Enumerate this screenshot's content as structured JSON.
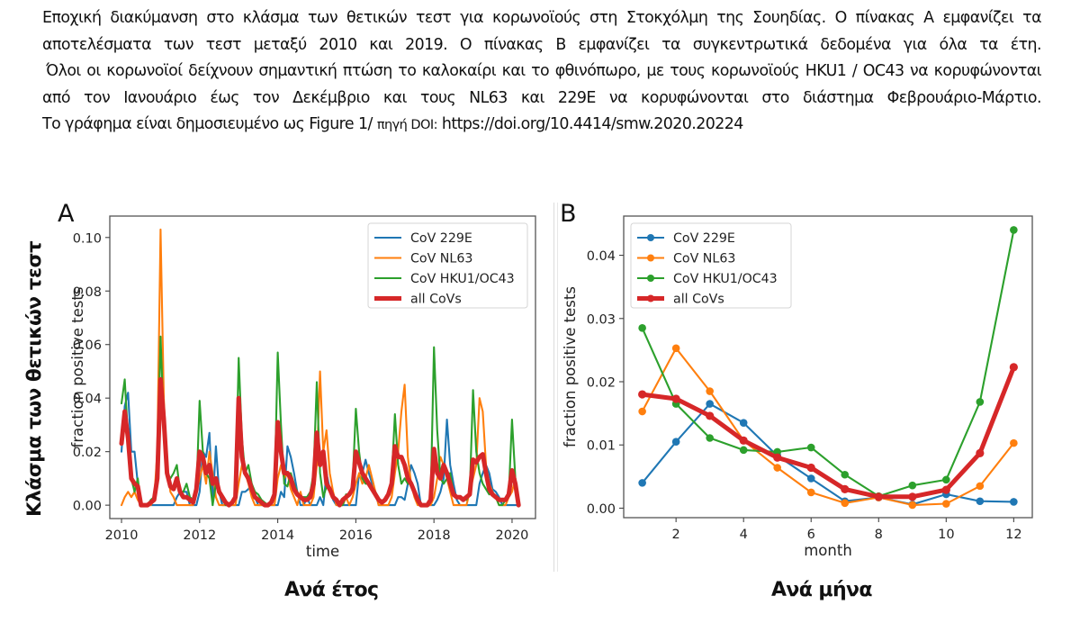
{
  "caption": {
    "paragraph1": "Εποχική διακύμανση στο κλάσμα των θετικών τεστ για κορωνοϊούς στη Στοκχόλμη της Σουηδίας. Ο πίνακας Α εμφανίζει τα αποτελέσματα των τεστ μεταξύ 2010 και 2019. Ο πίνακας Β εμφανίζει τα συγκεντρωτικά δεδομένα για όλα τα έτη.",
    "paragraph2": "Όλοι οι κορωνοϊοί δείχνουν σημαντική πτώση το καλοκαίρι και το φθινόπωρο, με τους κορωνοϊούς HKU1 / OC43 να κορυφώνονται από τον Ιανουάριο έως τον Δεκέμβριο και τους NL63 και 229E να κορυφώνονται στο διάστημα Φεβρουάριο-Μάρτιο.",
    "source_prefix": "Το γράφημα είναι δημοσιευμένο ως Figure 1/",
    "source_label": "πηγή DOI:",
    "source_url": "https://doi.org/10.4414/smw.2020.20224"
  },
  "y_axis_greek_label": "Κλάσμα των θετικών τεστ",
  "bottom_labels": {
    "panel_a": "Ανά έτος",
    "panel_b": "Ανά μήνα"
  },
  "colors": {
    "cov_229e": "#1f77b4",
    "cov_nl63": "#ff7f0e",
    "cov_hku1_oc43": "#2ca02c",
    "all_covs": "#d62728"
  },
  "chart_data": [
    {
      "panel": "A",
      "type": "line",
      "title": "",
      "xlabel": "time",
      "ylabel": "fraction positive tests",
      "xlim": [
        2009.7,
        2020.6
      ],
      "ylim": [
        -0.005,
        0.108
      ],
      "xticks": [
        2010,
        2012,
        2014,
        2016,
        2018,
        2020
      ],
      "xtick_labels": [
        "2010",
        "2012",
        "2014",
        "2016",
        "2018",
        "2020"
      ],
      "yticks": [
        0.0,
        0.02,
        0.04,
        0.06,
        0.08,
        0.1
      ],
      "ytick_labels": [
        "0.00",
        "0.02",
        "0.04",
        "0.06",
        "0.08",
        "0.10"
      ],
      "grid": false,
      "legend_position": "top-right",
      "x_start": 2010.0,
      "x_step": 0.08333,
      "series": [
        {
          "name": "CoV 229E",
          "color_key": "cov_229e",
          "width": "thin",
          "values": [
            0.02,
            0.037,
            0.042,
            0.02,
            0.02,
            0.008,
            0.0,
            0.0,
            0.0,
            0.0,
            0.0,
            0.0,
            0.0,
            0.0,
            0.0,
            0.0,
            0.0,
            0.003,
            0.005,
            0.005,
            0.005,
            0.0,
            0.0,
            0.0,
            0.005,
            0.02,
            0.018,
            0.027,
            0.0,
            0.022,
            0.005,
            0.0,
            0.0,
            0.0,
            0.0,
            0.0,
            0.0,
            0.005,
            0.005,
            0.006,
            0.008,
            0.003,
            0.0,
            0.0,
            0.0,
            0.0,
            0.0,
            0.0,
            0.0,
            0.005,
            0.003,
            0.022,
            0.018,
            0.012,
            0.005,
            0.0,
            0.0,
            0.003,
            0.0,
            0.0,
            0.0,
            0.003,
            0.0,
            0.012,
            0.006,
            0.002,
            0.0,
            0.0,
            0.0,
            0.0,
            0.0,
            0.0,
            0.0,
            0.012,
            0.012,
            0.017,
            0.012,
            0.008,
            0.005,
            0.0,
            0.0,
            0.0,
            0.0,
            0.0,
            0.0,
            0.003,
            0.003,
            0.002,
            0.008,
            0.015,
            0.012,
            0.008,
            0.0,
            0.0,
            0.0,
            0.0,
            0.0,
            0.002,
            0.005,
            0.01,
            0.032,
            0.015,
            0.008,
            0.002,
            0.0,
            0.0,
            0.0,
            0.0,
            0.0,
            0.0,
            0.008,
            0.012,
            0.015,
            0.012,
            0.006,
            0.005,
            0.003,
            0.0,
            0.0,
            0.0,
            0.0,
            0.0,
            0.0
          ]
        },
        {
          "name": "CoV NL63",
          "color_key": "cov_nl63",
          "width": "thin",
          "values": [
            0.0,
            0.003,
            0.005,
            0.003,
            0.005,
            0.002,
            0.0,
            0.0,
            0.0,
            0.0,
            0.002,
            0.02,
            0.103,
            0.04,
            0.015,
            0.005,
            0.003,
            0.0,
            0.0,
            0.0,
            0.0,
            0.0,
            0.0,
            0.005,
            0.01,
            0.015,
            0.008,
            0.02,
            0.012,
            0.003,
            0.0,
            0.0,
            0.0,
            0.0,
            0.0,
            0.0,
            0.008,
            0.015,
            0.012,
            0.008,
            0.003,
            0.0,
            0.0,
            0.0,
            0.0,
            0.0,
            0.0,
            0.0,
            0.01,
            0.015,
            0.01,
            0.012,
            0.006,
            0.003,
            0.0,
            0.005,
            0.0,
            0.0,
            0.0,
            0.003,
            0.015,
            0.05,
            0.02,
            0.028,
            0.012,
            0.005,
            0.0,
            0.0,
            0.0,
            0.003,
            0.0,
            0.003,
            0.008,
            0.012,
            0.008,
            0.01,
            0.015,
            0.01,
            0.005,
            0.0,
            0.0,
            0.0,
            0.0,
            0.003,
            0.012,
            0.02,
            0.035,
            0.045,
            0.018,
            0.008,
            0.003,
            0.0,
            0.0,
            0.0,
            0.0,
            0.0,
            0.003,
            0.01,
            0.018,
            0.015,
            0.01,
            0.005,
            0.0,
            0.0,
            0.0,
            0.0,
            0.0,
            0.005,
            0.01,
            0.015,
            0.04,
            0.035,
            0.015,
            0.008,
            0.005,
            0.003,
            0.0,
            0.0,
            0.0,
            0.003,
            0.005,
            0.01,
            0.0
          ]
        },
        {
          "name": "CoV HKU1/OC43",
          "color_key": "cov_hku1_oc43",
          "width": "thin",
          "values": [
            0.038,
            0.047,
            0.025,
            0.01,
            0.005,
            0.01,
            0.0,
            0.0,
            0.0,
            0.002,
            0.003,
            0.012,
            0.063,
            0.03,
            0.012,
            0.01,
            0.012,
            0.015,
            0.005,
            0.005,
            0.008,
            0.003,
            0.002,
            0.005,
            0.039,
            0.02,
            0.012,
            0.01,
            0.0,
            0.008,
            0.005,
            0.002,
            0.0,
            0.0,
            0.001,
            0.003,
            0.055,
            0.025,
            0.012,
            0.015,
            0.008,
            0.005,
            0.004,
            0.002,
            0.001,
            0.0,
            0.002,
            0.005,
            0.057,
            0.03,
            0.008,
            0.007,
            0.012,
            0.008,
            0.005,
            0.003,
            0.003,
            0.003,
            0.005,
            0.012,
            0.046,
            0.012,
            0.003,
            0.007,
            0.005,
            0.003,
            0.002,
            0.0,
            0.0,
            0.004,
            0.004,
            0.008,
            0.036,
            0.02,
            0.01,
            0.008,
            0.008,
            0.006,
            0.005,
            0.002,
            0.001,
            0.002,
            0.004,
            0.01,
            0.034,
            0.015,
            0.008,
            0.01,
            0.008,
            0.008,
            0.005,
            0.003,
            0.0,
            0.0,
            0.0,
            0.002,
            0.059,
            0.028,
            0.01,
            0.008,
            0.01,
            0.012,
            0.005,
            0.003,
            0.003,
            0.002,
            0.002,
            0.004,
            0.043,
            0.02,
            0.012,
            0.008,
            0.006,
            0.004,
            0.005,
            0.003,
            0.0,
            0.0,
            0.002,
            0.004,
            0.032,
            0.01,
            0.0
          ]
        },
        {
          "name": "all CoVs",
          "color_key": "all_covs",
          "width": "thick",
          "values": [
            0.023,
            0.035,
            0.025,
            0.01,
            0.008,
            0.007,
            0.0,
            0.0,
            0.0,
            0.001,
            0.002,
            0.01,
            0.047,
            0.032,
            0.012,
            0.007,
            0.006,
            0.01,
            0.005,
            0.003,
            0.003,
            0.002,
            0.001,
            0.006,
            0.02,
            0.018,
            0.012,
            0.015,
            0.008,
            0.01,
            0.005,
            0.003,
            0.001,
            0.0,
            0.001,
            0.003,
            0.04,
            0.018,
            0.012,
            0.01,
            0.006,
            0.003,
            0.002,
            0.001,
            0.0,
            0.0,
            0.001,
            0.004,
            0.031,
            0.02,
            0.012,
            0.012,
            0.01,
            0.006,
            0.004,
            0.003,
            0.002,
            0.002,
            0.003,
            0.008,
            0.027,
            0.015,
            0.02,
            0.008,
            0.006,
            0.003,
            0.002,
            0.0,
            0.002,
            0.003,
            0.004,
            0.006,
            0.02,
            0.016,
            0.012,
            0.01,
            0.008,
            0.006,
            0.004,
            0.002,
            0.001,
            0.002,
            0.004,
            0.008,
            0.022,
            0.018,
            0.018,
            0.015,
            0.01,
            0.008,
            0.005,
            0.002,
            0.0,
            0.0,
            0.0,
            0.002,
            0.021,
            0.012,
            0.01,
            0.015,
            0.012,
            0.008,
            0.004,
            0.003,
            0.003,
            0.002,
            0.003,
            0.004,
            0.017,
            0.016,
            0.018,
            0.019,
            0.012,
            0.006,
            0.004,
            0.003,
            0.002,
            0.002,
            0.002,
            0.004,
            0.013,
            0.008,
            0.0
          ]
        }
      ]
    },
    {
      "panel": "B",
      "type": "line",
      "title": "",
      "xlabel": "month",
      "ylabel": "fraction positive tests",
      "x": [
        1,
        2,
        3,
        4,
        5,
        6,
        7,
        8,
        9,
        10,
        11,
        12
      ],
      "xlim": [
        0.45,
        12.55
      ],
      "ylim": [
        -0.0015,
        0.0462
      ],
      "xticks": [
        2,
        4,
        6,
        8,
        10,
        12
      ],
      "xtick_labels": [
        "2",
        "4",
        "6",
        "8",
        "10",
        "12"
      ],
      "yticks": [
        0.0,
        0.01,
        0.02,
        0.03,
        0.04
      ],
      "ytick_labels": [
        "0.00",
        "0.01",
        "0.02",
        "0.03",
        "0.04"
      ],
      "grid": false,
      "legend_position": "top-left",
      "markers": true,
      "series": [
        {
          "name": "CoV 229E",
          "color_key": "cov_229e",
          "width": "thin",
          "values": [
            0.004,
            0.0105,
            0.0165,
            0.0135,
            0.0083,
            0.0047,
            0.0011,
            0.0017,
            0.0006,
            0.0022,
            0.0011,
            0.001
          ]
        },
        {
          "name": "CoV NL63",
          "color_key": "cov_nl63",
          "width": "thin",
          "values": [
            0.0153,
            0.0253,
            0.0185,
            0.0107,
            0.0064,
            0.0025,
            0.0008,
            0.0017,
            0.0005,
            0.0007,
            0.0035,
            0.0103
          ]
        },
        {
          "name": "CoV HKU1/OC43",
          "color_key": "cov_hku1_oc43",
          "width": "thin",
          "values": [
            0.0285,
            0.0165,
            0.0111,
            0.0092,
            0.0089,
            0.0096,
            0.0053,
            0.0019,
            0.0036,
            0.0045,
            0.0168,
            0.044
          ]
        },
        {
          "name": "all CoVs",
          "color_key": "all_covs",
          "width": "thick",
          "values": [
            0.018,
            0.0173,
            0.0146,
            0.0107,
            0.008,
            0.0064,
            0.003,
            0.0018,
            0.0018,
            0.0029,
            0.0087,
            0.0223
          ]
        }
      ]
    }
  ]
}
